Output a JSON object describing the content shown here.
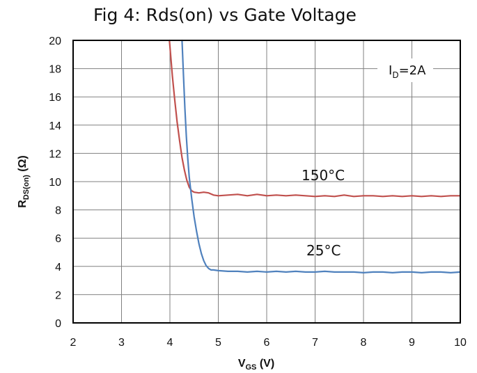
{
  "chart_data": {
    "type": "line",
    "title": "Fig 4: Rds(on) vs Gate Voltage",
    "xlabel": {
      "main": "V",
      "sub": "GS",
      "suffix": " (V)"
    },
    "ylabel": {
      "main": "R",
      "sub": "DS(on)",
      "suffix": " (Ω)"
    },
    "xlim": [
      2,
      10
    ],
    "ylim": [
      0,
      20
    ],
    "xticks": [
      "2",
      "3",
      "4",
      "5",
      "6",
      "7",
      "8",
      "9",
      "10"
    ],
    "yticks": [
      "0",
      "2",
      "4",
      "6",
      "8",
      "10",
      "12",
      "14",
      "16",
      "18",
      "20"
    ],
    "grid": true,
    "legend": {
      "main": "I",
      "sub": "D",
      "suffix": "=2A",
      "placement": "top-right"
    },
    "series": [
      {
        "name": "150°C",
        "color": "#c0504d",
        "x": [
          3.99,
          4.05,
          4.1,
          4.15,
          4.2,
          4.25,
          4.3,
          4.35,
          4.4,
          4.45,
          4.5,
          4.6,
          4.7,
          4.8,
          4.9,
          5.0,
          5.2,
          5.4,
          5.6,
          5.8,
          6.0,
          6.2,
          6.4,
          6.6,
          6.8,
          7.0,
          7.2,
          7.4,
          7.6,
          7.8,
          8.0,
          8.2,
          8.4,
          8.6,
          8.8,
          9.0,
          9.2,
          9.4,
          9.6,
          9.8,
          10.0
        ],
        "y": [
          20.0,
          17.5,
          15.8,
          14.2,
          12.9,
          11.7,
          10.8,
          10.1,
          9.6,
          9.35,
          9.25,
          9.2,
          9.25,
          9.2,
          9.05,
          9.0,
          9.05,
          9.1,
          9.0,
          9.1,
          9.0,
          9.05,
          9.0,
          9.05,
          9.0,
          8.95,
          9.0,
          8.95,
          9.05,
          8.95,
          9.0,
          9.0,
          8.95,
          9.0,
          8.95,
          9.0,
          8.95,
          9.0,
          8.95,
          9.0,
          9.0
        ]
      },
      {
        "name": "25°C",
        "color": "#4f81bd",
        "x": [
          4.25,
          4.28,
          4.31,
          4.34,
          4.37,
          4.4,
          4.45,
          4.5,
          4.55,
          4.6,
          4.65,
          4.7,
          4.75,
          4.8,
          4.85,
          4.9,
          5.0,
          5.2,
          5.4,
          5.6,
          5.8,
          6.0,
          6.2,
          6.4,
          6.6,
          6.8,
          7.0,
          7.2,
          7.4,
          7.6,
          7.8,
          8.0,
          8.2,
          8.4,
          8.6,
          8.8,
          9.0,
          9.2,
          9.4,
          9.6,
          9.8,
          10.0
        ],
        "y": [
          20.0,
          17.5,
          15.2,
          13.2,
          11.6,
          10.3,
          8.8,
          7.5,
          6.5,
          5.6,
          4.9,
          4.4,
          4.05,
          3.85,
          3.75,
          3.75,
          3.7,
          3.65,
          3.65,
          3.6,
          3.65,
          3.6,
          3.65,
          3.6,
          3.65,
          3.6,
          3.6,
          3.65,
          3.6,
          3.6,
          3.6,
          3.55,
          3.6,
          3.6,
          3.55,
          3.6,
          3.6,
          3.55,
          3.6,
          3.6,
          3.55,
          3.6
        ]
      }
    ],
    "annotations": [
      "150°C",
      "25°C"
    ]
  }
}
